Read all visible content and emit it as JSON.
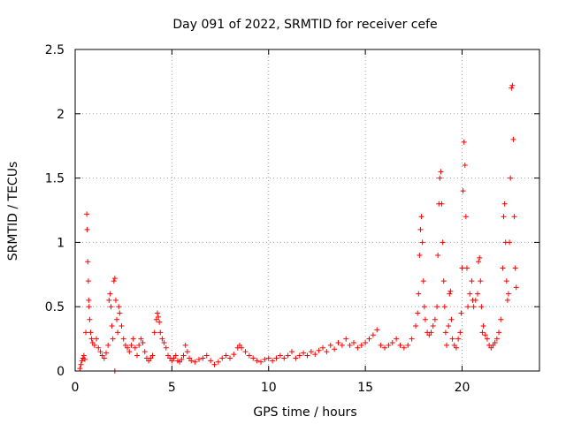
{
  "chart_data": {
    "type": "scatter",
    "title": "Day 091 of 2022, SRMTID for receiver cefe",
    "xlabel": "GPS time / hours",
    "ylabel": "SRMTID / TECUs",
    "xlim": [
      0,
      24
    ],
    "ylim": [
      0,
      2.5
    ],
    "grid": true,
    "x_ticks": [
      {
        "value": 0,
        "label": "0"
      },
      {
        "value": 5,
        "label": "5"
      },
      {
        "value": 10,
        "label": "10"
      },
      {
        "value": 15,
        "label": "15"
      },
      {
        "value": 20,
        "label": "20"
      }
    ],
    "y_ticks": [
      {
        "value": 0,
        "label": "0"
      },
      {
        "value": 0.5,
        "label": "0.5"
      },
      {
        "value": 1,
        "label": "1"
      },
      {
        "value": 1.5,
        "label": "1.5"
      },
      {
        "value": 2,
        "label": "2"
      },
      {
        "value": 2.5,
        "label": "2.5"
      }
    ],
    "marker": "+",
    "color": "#ff0000",
    "series": [
      {
        "name": "SRMTID",
        "points": [
          [
            0.25,
            0.02
          ],
          [
            0.3,
            0.05
          ],
          [
            0.35,
            0.08
          ],
          [
            0.4,
            0.1
          ],
          [
            0.45,
            0.12
          ],
          [
            0.5,
            0.09
          ],
          [
            0.55,
            0.3
          ],
          [
            0.6,
            1.22
          ],
          [
            0.62,
            1.1
          ],
          [
            0.65,
            0.85
          ],
          [
            0.68,
            0.7
          ],
          [
            0.7,
            0.55
          ],
          [
            0.72,
            0.5
          ],
          [
            0.75,
            0.4
          ],
          [
            0.8,
            0.3
          ],
          [
            0.85,
            0.25
          ],
          [
            0.9,
            0.22
          ],
          [
            1.0,
            0.2
          ],
          [
            1.1,
            0.25
          ],
          [
            1.2,
            0.18
          ],
          [
            1.3,
            0.15
          ],
          [
            1.4,
            0.12
          ],
          [
            1.5,
            0.1
          ],
          [
            1.6,
            0.14
          ],
          [
            1.7,
            0.2
          ],
          [
            1.75,
            0.55
          ],
          [
            1.8,
            0.6
          ],
          [
            1.85,
            0.5
          ],
          [
            1.9,
            0.35
          ],
          [
            1.95,
            0.25
          ],
          [
            2.0,
            0.7
          ],
          [
            2.05,
            0.72
          ],
          [
            2.1,
            0.55
          ],
          [
            2.15,
            0.4
          ],
          [
            2.2,
            0.3
          ],
          [
            2.05,
            0.0
          ],
          [
            2.25,
            0.5
          ],
          [
            2.3,
            0.45
          ],
          [
            2.4,
            0.35
          ],
          [
            2.5,
            0.25
          ],
          [
            2.6,
            0.2
          ],
          [
            2.7,
            0.18
          ],
          [
            2.8,
            0.15
          ],
          [
            2.9,
            0.2
          ],
          [
            3.0,
            0.25
          ],
          [
            3.1,
            0.18
          ],
          [
            3.2,
            0.12
          ],
          [
            3.3,
            0.2
          ],
          [
            3.4,
            0.25
          ],
          [
            3.5,
            0.22
          ],
          [
            3.6,
            0.15
          ],
          [
            3.7,
            0.1
          ],
          [
            3.8,
            0.08
          ],
          [
            3.9,
            0.1
          ],
          [
            4.0,
            0.12
          ],
          [
            4.1,
            0.3
          ],
          [
            4.2,
            0.4
          ],
          [
            4.25,
            0.45
          ],
          [
            4.3,
            0.42
          ],
          [
            4.35,
            0.38
          ],
          [
            4.4,
            0.3
          ],
          [
            4.5,
            0.25
          ],
          [
            4.6,
            0.22
          ],
          [
            4.7,
            0.18
          ],
          [
            4.8,
            0.12
          ],
          [
            4.9,
            0.1
          ],
          [
            5.0,
            0.08
          ],
          [
            5.1,
            0.1
          ],
          [
            5.2,
            0.12
          ],
          [
            5.3,
            0.08
          ],
          [
            5.4,
            0.07
          ],
          [
            5.5,
            0.09
          ],
          [
            5.6,
            0.12
          ],
          [
            5.7,
            0.2
          ],
          [
            5.8,
            0.15
          ],
          [
            5.9,
            0.1
          ],
          [
            6.0,
            0.08
          ],
          [
            6.2,
            0.07
          ],
          [
            6.4,
            0.09
          ],
          [
            6.6,
            0.1
          ],
          [
            6.8,
            0.12
          ],
          [
            7.0,
            0.08
          ],
          [
            7.2,
            0.05
          ],
          [
            7.4,
            0.07
          ],
          [
            7.6,
            0.1
          ],
          [
            7.8,
            0.12
          ],
          [
            8.0,
            0.1
          ],
          [
            8.2,
            0.13
          ],
          [
            8.4,
            0.18
          ],
          [
            8.5,
            0.2
          ],
          [
            8.6,
            0.18
          ],
          [
            8.8,
            0.15
          ],
          [
            9.0,
            0.12
          ],
          [
            9.2,
            0.1
          ],
          [
            9.4,
            0.08
          ],
          [
            9.6,
            0.07
          ],
          [
            9.8,
            0.09
          ],
          [
            10.0,
            0.1
          ],
          [
            10.2,
            0.08
          ],
          [
            10.4,
            0.1
          ],
          [
            10.6,
            0.12
          ],
          [
            10.8,
            0.1
          ],
          [
            11.0,
            0.12
          ],
          [
            11.2,
            0.15
          ],
          [
            11.4,
            0.1
          ],
          [
            11.6,
            0.12
          ],
          [
            11.8,
            0.14
          ],
          [
            12.0,
            0.12
          ],
          [
            12.2,
            0.15
          ],
          [
            12.4,
            0.13
          ],
          [
            12.6,
            0.16
          ],
          [
            12.8,
            0.18
          ],
          [
            13.0,
            0.15
          ],
          [
            13.2,
            0.2
          ],
          [
            13.4,
            0.17
          ],
          [
            13.6,
            0.22
          ],
          [
            13.8,
            0.2
          ],
          [
            14.0,
            0.25
          ],
          [
            14.2,
            0.2
          ],
          [
            14.4,
            0.22
          ],
          [
            14.6,
            0.18
          ],
          [
            14.8,
            0.2
          ],
          [
            15.0,
            0.22
          ],
          [
            15.2,
            0.25
          ],
          [
            15.4,
            0.28
          ],
          [
            15.6,
            0.32
          ],
          [
            15.8,
            0.2
          ],
          [
            16.0,
            0.18
          ],
          [
            16.2,
            0.2
          ],
          [
            16.4,
            0.22
          ],
          [
            16.6,
            0.25
          ],
          [
            16.8,
            0.2
          ],
          [
            17.0,
            0.18
          ],
          [
            17.2,
            0.2
          ],
          [
            17.4,
            0.25
          ],
          [
            17.6,
            0.35
          ],
          [
            17.7,
            0.45
          ],
          [
            17.75,
            0.6
          ],
          [
            17.8,
            0.9
          ],
          [
            17.85,
            1.1
          ],
          [
            17.9,
            1.2
          ],
          [
            17.95,
            1.0
          ],
          [
            18.0,
            0.7
          ],
          [
            18.05,
            0.5
          ],
          [
            18.1,
            0.4
          ],
          [
            18.2,
            0.3
          ],
          [
            18.3,
            0.28
          ],
          [
            18.4,
            0.3
          ],
          [
            18.5,
            0.35
          ],
          [
            18.6,
            0.4
          ],
          [
            18.7,
            0.5
          ],
          [
            18.75,
            0.9
          ],
          [
            18.8,
            1.3
          ],
          [
            18.85,
            1.5
          ],
          [
            18.9,
            1.55
          ],
          [
            18.95,
            1.3
          ],
          [
            19.0,
            1.0
          ],
          [
            19.05,
            0.7
          ],
          [
            19.1,
            0.5
          ],
          [
            19.15,
            0.3
          ],
          [
            19.2,
            0.2
          ],
          [
            19.3,
            0.35
          ],
          [
            19.35,
            0.6
          ],
          [
            19.4,
            0.62
          ],
          [
            19.45,
            0.4
          ],
          [
            19.5,
            0.25
          ],
          [
            19.6,
            0.2
          ],
          [
            19.7,
            0.18
          ],
          [
            19.8,
            0.25
          ],
          [
            19.9,
            0.3
          ],
          [
            19.95,
            0.45
          ],
          [
            20.0,
            0.8
          ],
          [
            20.05,
            1.4
          ],
          [
            20.1,
            1.78
          ],
          [
            20.15,
            1.6
          ],
          [
            20.2,
            1.2
          ],
          [
            20.25,
            0.8
          ],
          [
            20.3,
            0.5
          ],
          [
            20.4,
            0.6
          ],
          [
            20.5,
            0.7
          ],
          [
            20.55,
            0.55
          ],
          [
            20.6,
            0.5
          ],
          [
            20.7,
            0.55
          ],
          [
            20.8,
            0.6
          ],
          [
            20.85,
            0.85
          ],
          [
            20.9,
            0.88
          ],
          [
            20.95,
            0.7
          ],
          [
            21.0,
            0.5
          ],
          [
            21.05,
            0.3
          ],
          [
            21.1,
            0.35
          ],
          [
            21.2,
            0.28
          ],
          [
            21.3,
            0.25
          ],
          [
            21.4,
            0.2
          ],
          [
            21.5,
            0.18
          ],
          [
            21.6,
            0.2
          ],
          [
            21.7,
            0.22
          ],
          [
            21.8,
            0.25
          ],
          [
            21.9,
            0.3
          ],
          [
            22.0,
            0.4
          ],
          [
            22.1,
            0.8
          ],
          [
            22.15,
            1.2
          ],
          [
            22.2,
            1.3
          ],
          [
            22.25,
            1.0
          ],
          [
            22.3,
            0.7
          ],
          [
            22.35,
            0.55
          ],
          [
            22.4,
            0.6
          ],
          [
            22.45,
            1.0
          ],
          [
            22.5,
            1.5
          ],
          [
            22.55,
            2.2
          ],
          [
            22.6,
            2.22
          ],
          [
            22.65,
            1.8
          ],
          [
            22.7,
            1.2
          ],
          [
            22.75,
            0.8
          ],
          [
            22.8,
            0.65
          ]
        ]
      }
    ]
  }
}
